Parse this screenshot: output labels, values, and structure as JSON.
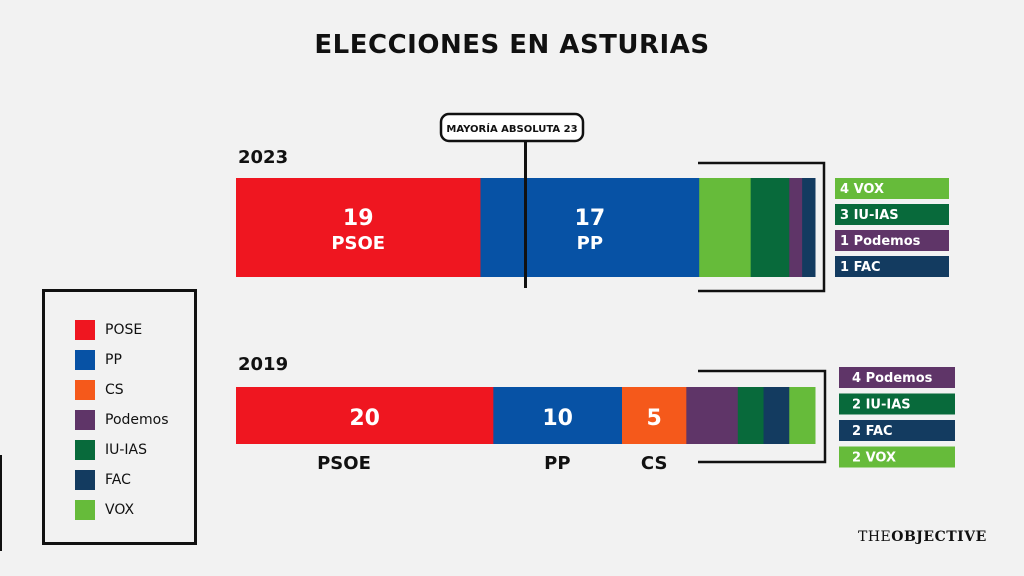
{
  "title": "ELECCIONES EN ASTURIAS",
  "brand": {
    "prefix": "THE",
    "name": "OBJECTIVE"
  },
  "colors": {
    "PSOE": "#ef1620",
    "PP": "#0752a5",
    "CS": "#f5591b",
    "Podemos": "#5f3568",
    "IU-IAS": "#086a3b",
    "FAC": "#133b60",
    "VOX": "#66bb3a"
  },
  "legend": [
    {
      "label": "POSE",
      "color": "#ef1620"
    },
    {
      "label": "PP",
      "color": "#0752a5"
    },
    {
      "label": "CS",
      "color": "#f5591b"
    },
    {
      "label": "Podemos",
      "color": "#5f3568"
    },
    {
      "label": "IU-IAS",
      "color": "#086a3b"
    },
    {
      "label": "FAC",
      "color": "#133b60"
    },
    {
      "label": "VOX",
      "color": "#66bb3a"
    }
  ],
  "chart_data": {
    "type": "bar",
    "orientation": "horizontal-stacked",
    "total_seats": 45,
    "majority": {
      "label": "MAYORÍA ABSOLUTA 23",
      "value": 23
    },
    "rows": [
      {
        "year": "2023",
        "segments": [
          {
            "party": "PSOE",
            "seats": 19,
            "label": "19",
            "sublabel": "PSOE"
          },
          {
            "party": "PP",
            "seats": 17,
            "label": "17",
            "sublabel": "PP"
          },
          {
            "party": "VOX",
            "seats": 4
          },
          {
            "party": "IU-IAS",
            "seats": 3
          },
          {
            "party": "Podemos",
            "seats": 1
          },
          {
            "party": "FAC",
            "seats": 1
          }
        ],
        "callouts": [
          {
            "text": "4 VOX",
            "party": "VOX"
          },
          {
            "text": "3 IU-IAS",
            "party": "IU-IAS"
          },
          {
            "text": "1 Podemos",
            "party": "Podemos"
          },
          {
            "text": "1 FAC",
            "party": "FAC"
          }
        ]
      },
      {
        "year": "2019",
        "segments": [
          {
            "party": "PSOE",
            "seats": 20,
            "label": "20",
            "below": "PSOE"
          },
          {
            "party": "PP",
            "seats": 10,
            "label": "10",
            "below": "PP"
          },
          {
            "party": "CS",
            "seats": 5,
            "label": "5",
            "below": "CS"
          },
          {
            "party": "Podemos",
            "seats": 4
          },
          {
            "party": "IU-IAS",
            "seats": 2
          },
          {
            "party": "FAC",
            "seats": 2
          },
          {
            "party": "VOX",
            "seats": 2
          }
        ],
        "callouts": [
          {
            "text": "4 Podemos",
            "party": "Podemos"
          },
          {
            "text": "2 IU-IAS",
            "party": "IU-IAS"
          },
          {
            "text": "2 FAC",
            "party": "FAC"
          },
          {
            "text": "2 VOX",
            "party": "VOX"
          }
        ]
      }
    ]
  }
}
